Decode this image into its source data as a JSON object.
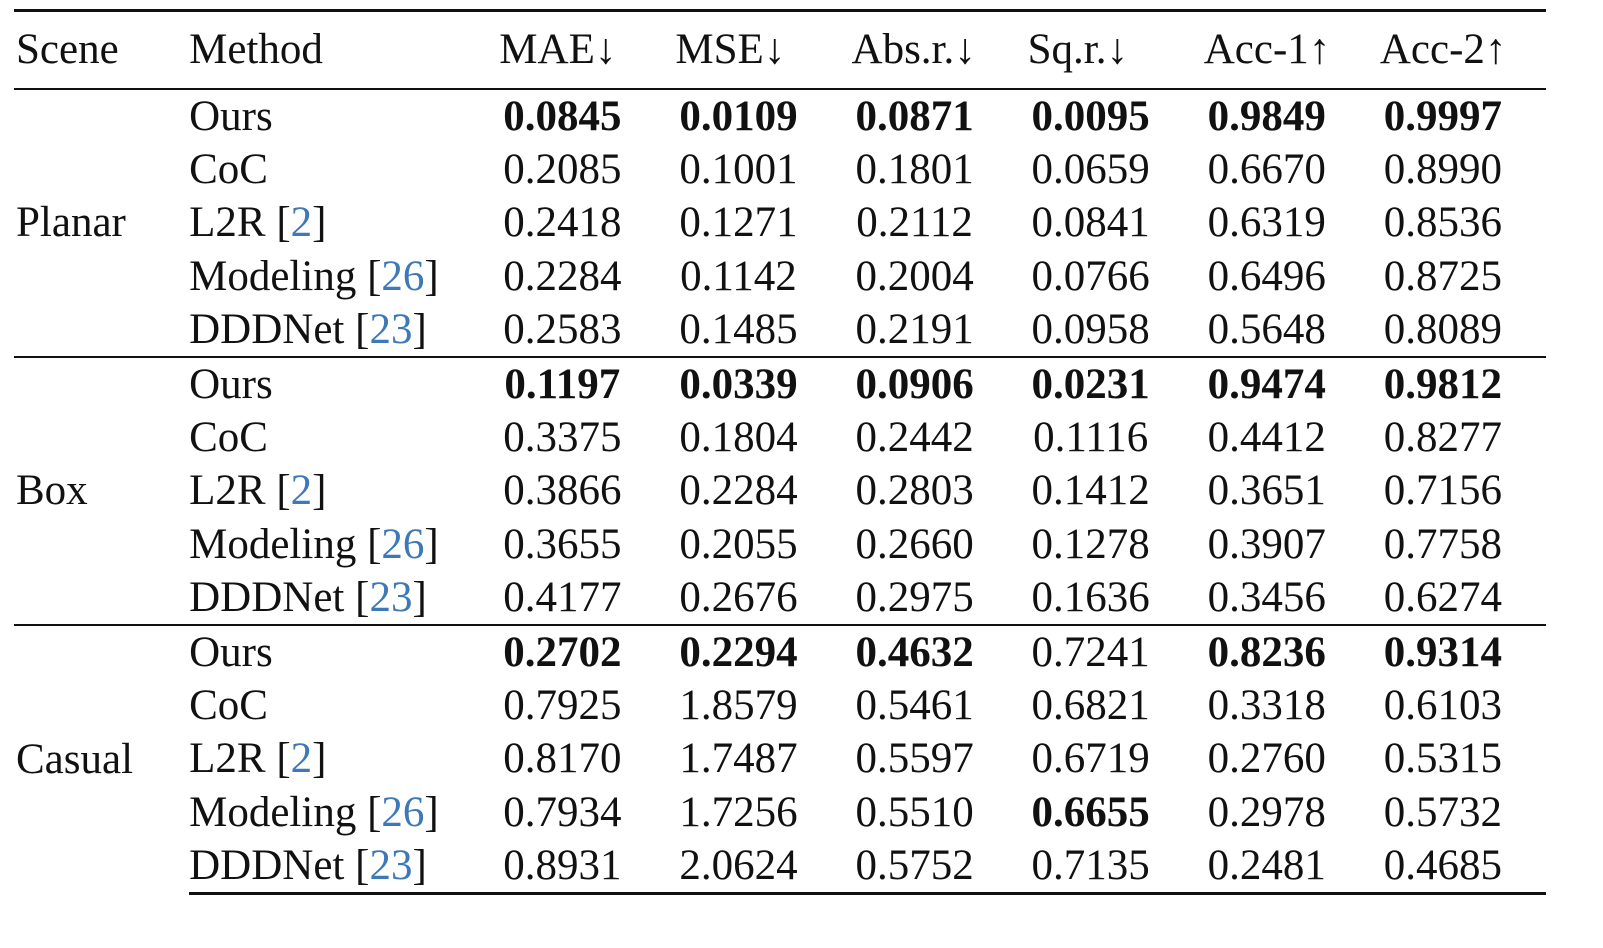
{
  "table": {
    "headers": {
      "scene": "Scene",
      "method": "Method",
      "metrics": [
        "MAE↓",
        "MSE↓",
        "Abs.r.↓",
        "Sq.r.↓",
        "Acc-1↑",
        "Acc-2↑"
      ]
    },
    "groups": [
      {
        "scene": "Planar",
        "rows": [
          {
            "method": "Ours",
            "ref": "",
            "values": [
              "0.0845",
              "0.0109",
              "0.0871",
              "0.0095",
              "0.9849",
              "0.9997"
            ],
            "bold": [
              true,
              true,
              true,
              true,
              true,
              true
            ]
          },
          {
            "method": "CoC",
            "ref": "",
            "values": [
              "0.2085",
              "0.1001",
              "0.1801",
              "0.0659",
              "0.6670",
              "0.8990"
            ],
            "bold": [
              false,
              false,
              false,
              false,
              false,
              false
            ]
          },
          {
            "method": "L2R",
            "ref": "2",
            "values": [
              "0.2418",
              "0.1271",
              "0.2112",
              "0.0841",
              "0.6319",
              "0.8536"
            ],
            "bold": [
              false,
              false,
              false,
              false,
              false,
              false
            ]
          },
          {
            "method": "Modeling",
            "ref": "26",
            "values": [
              "0.2284",
              "0.1142",
              "0.2004",
              "0.0766",
              "0.6496",
              "0.8725"
            ],
            "bold": [
              false,
              false,
              false,
              false,
              false,
              false
            ]
          },
          {
            "method": "DDDNet",
            "ref": "23",
            "values": [
              "0.2583",
              "0.1485",
              "0.2191",
              "0.0958",
              "0.5648",
              "0.8089"
            ],
            "bold": [
              false,
              false,
              false,
              false,
              false,
              false
            ]
          }
        ]
      },
      {
        "scene": "Box",
        "rows": [
          {
            "method": "Ours",
            "ref": "",
            "values": [
              "0.1197",
              "0.0339",
              "0.0906",
              "0.0231",
              "0.9474",
              "0.9812"
            ],
            "bold": [
              true,
              true,
              true,
              true,
              true,
              true
            ]
          },
          {
            "method": "CoC",
            "ref": "",
            "values": [
              "0.3375",
              "0.1804",
              "0.2442",
              "0.1116",
              "0.4412",
              "0.8277"
            ],
            "bold": [
              false,
              false,
              false,
              false,
              false,
              false
            ]
          },
          {
            "method": "L2R",
            "ref": "2",
            "values": [
              "0.3866",
              "0.2284",
              "0.2803",
              "0.1412",
              "0.3651",
              "0.7156"
            ],
            "bold": [
              false,
              false,
              false,
              false,
              false,
              false
            ]
          },
          {
            "method": "Modeling",
            "ref": "26",
            "values": [
              "0.3655",
              "0.2055",
              "0.2660",
              "0.1278",
              "0.3907",
              "0.7758"
            ],
            "bold": [
              false,
              false,
              false,
              false,
              false,
              false
            ]
          },
          {
            "method": "DDDNet",
            "ref": "23",
            "values": [
              "0.4177",
              "0.2676",
              "0.2975",
              "0.1636",
              "0.3456",
              "0.6274"
            ],
            "bold": [
              false,
              false,
              false,
              false,
              false,
              false
            ]
          }
        ]
      },
      {
        "scene": "Casual",
        "rows": [
          {
            "method": "Ours",
            "ref": "",
            "values": [
              "0.2702",
              "0.2294",
              "0.4632",
              "0.7241",
              "0.8236",
              "0.9314"
            ],
            "bold": [
              true,
              true,
              true,
              false,
              true,
              true
            ]
          },
          {
            "method": "CoC",
            "ref": "",
            "values": [
              "0.7925",
              "1.8579",
              "0.5461",
              "0.6821",
              "0.3318",
              "0.6103"
            ],
            "bold": [
              false,
              false,
              false,
              false,
              false,
              false
            ]
          },
          {
            "method": "L2R",
            "ref": "2",
            "values": [
              "0.8170",
              "1.7487",
              "0.5597",
              "0.6719",
              "0.2760",
              "0.5315"
            ],
            "bold": [
              false,
              false,
              false,
              false,
              false,
              false
            ]
          },
          {
            "method": "Modeling",
            "ref": "26",
            "values": [
              "0.7934",
              "1.7256",
              "0.5510",
              "0.6655",
              "0.2978",
              "0.5732"
            ],
            "bold": [
              false,
              false,
              false,
              true,
              false,
              false
            ]
          },
          {
            "method": "DDDNet",
            "ref": "23",
            "values": [
              "0.8931",
              "2.0624",
              "0.5752",
              "0.7135",
              "0.2481",
              "0.4685"
            ],
            "bold": [
              false,
              false,
              false,
              false,
              false,
              false
            ]
          }
        ]
      }
    ]
  }
}
